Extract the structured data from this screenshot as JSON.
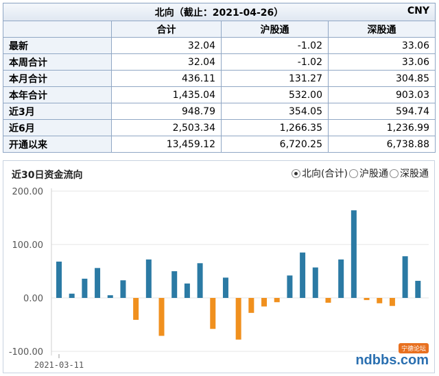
{
  "table": {
    "title": "北向（截止：2021-04-26）",
    "unit": "CNY",
    "headers": [
      "合计",
      "沪股通",
      "深股通"
    ],
    "rows": [
      {
        "label": "最新",
        "total": "32.04",
        "sh": "-1.02",
        "sz": "33.06"
      },
      {
        "label": "本周合计",
        "total": "32.04",
        "sh": "-1.02",
        "sz": "33.06"
      },
      {
        "label": "本月合计",
        "total": "436.11",
        "sh": "131.27",
        "sz": "304.85"
      },
      {
        "label": "本年合计",
        "total": "1,435.04",
        "sh": "532.00",
        "sz": "903.03"
      },
      {
        "label": "近3月",
        "total": "948.79",
        "sh": "354.05",
        "sz": "594.74"
      },
      {
        "label": "近6月",
        "total": "2,503.34",
        "sh": "1,266.35",
        "sz": "1,236.99"
      },
      {
        "label": "开通以来",
        "total": "13,459.12",
        "sh": "6,720.25",
        "sz": "6,738.88"
      }
    ]
  },
  "chart": {
    "title": "近30日资金流向",
    "legend": [
      {
        "label": "北向(合计)",
        "selected": true
      },
      {
        "label": "沪股通",
        "selected": false
      },
      {
        "label": "深股通",
        "selected": false
      }
    ],
    "watermark": "ndbbs.com",
    "watermark_badge": "宁德论坛"
  },
  "chart_data": {
    "type": "bar",
    "x_start_label": "2021-03-11",
    "yticks": [
      "200.00",
      "100.00",
      "0.00",
      "-100.00"
    ],
    "ytick_values": [
      200,
      100,
      0,
      -100
    ],
    "ylim": [
      -100,
      200
    ],
    "colors": {
      "positive": "#2b7aa4",
      "negative": "#f0901e"
    },
    "values": [
      68,
      8,
      36,
      56,
      5,
      33,
      -41,
      72,
      -71,
      50,
      27,
      65,
      -58,
      38,
      -78,
      -28,
      -16,
      -8,
      42,
      85,
      57,
      -9,
      72,
      164,
      -4,
      -10,
      -15,
      78,
      32
    ]
  }
}
